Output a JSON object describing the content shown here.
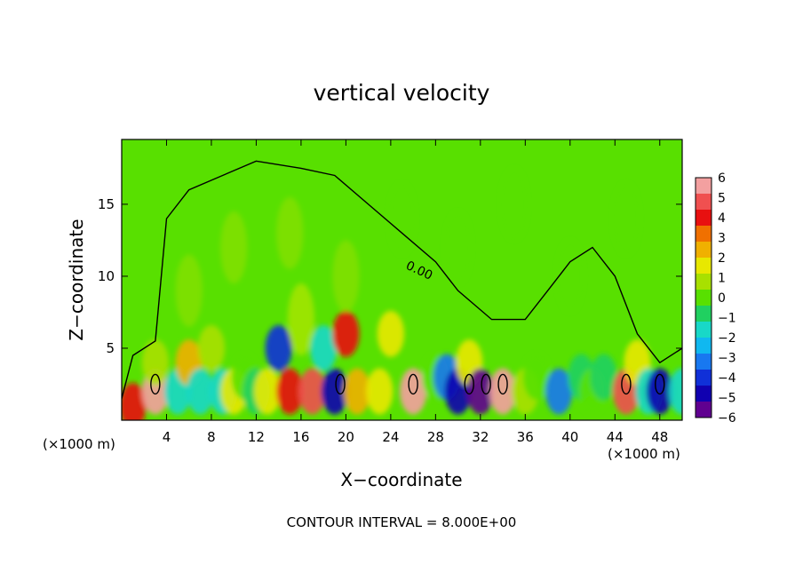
{
  "chart_data": {
    "type": "heatmap",
    "title": "vertical velocity",
    "xlabel": "X−coordinate",
    "ylabel": "Z−coordinate",
    "x_unit_left": "(×1000 m)",
    "x_unit_right": "(×1000 m)",
    "xlim": [
      0,
      50
    ],
    "ylim": [
      0,
      19.5
    ],
    "x_ticks": [
      4,
      8,
      12,
      16,
      20,
      24,
      28,
      32,
      36,
      40,
      44,
      48
    ],
    "y_ticks": [
      5,
      10,
      15
    ],
    "footer": "CONTOUR INTERVAL = 8.000E+00",
    "contour_label": "0.00",
    "colorbar": {
      "min": -6,
      "max": 6,
      "labels": [
        "6",
        "5",
        "4",
        "3",
        "2",
        "1",
        "0",
        "−1",
        "−2",
        "−3",
        "−4",
        "−5",
        "−6"
      ],
      "colors": [
        "#f3a0a0",
        "#f05050",
        "#e81010",
        "#f07000",
        "#f0b000",
        "#e8e800",
        "#a8e000",
        "#58e000",
        "#20d060",
        "#18d8c8",
        "#10b8f0",
        "#1878f0",
        "#1030d8",
        "#1000b0",
        "#600090"
      ]
    },
    "cells": [
      {
        "x": 1,
        "z": 1,
        "w": 4
      },
      {
        "x": 3,
        "z": 2,
        "w": 6
      },
      {
        "x": 3,
        "z": 4,
        "w": 1
      },
      {
        "x": 5,
        "z": 2,
        "w": -2
      },
      {
        "x": 6,
        "z": 4,
        "w": 3
      },
      {
        "x": 7,
        "z": 2,
        "w": -2
      },
      {
        "x": 8,
        "z": 5,
        "w": 1
      },
      {
        "x": 9,
        "z": 2,
        "w": -2
      },
      {
        "x": 10,
        "z": 2,
        "w": 2
      },
      {
        "x": 11,
        "z": 3,
        "w": 0
      },
      {
        "x": 12,
        "z": 2,
        "w": -1
      },
      {
        "x": 13,
        "z": 2,
        "w": 2
      },
      {
        "x": 14,
        "z": 5,
        "w": -4
      },
      {
        "x": 15,
        "z": 2,
        "w": 4
      },
      {
        "x": 16,
        "z": 7,
        "w": 2
      },
      {
        "x": 17,
        "z": 2,
        "w": 5
      },
      {
        "x": 18,
        "z": 5,
        "w": -2
      },
      {
        "x": 19,
        "z": 2,
        "w": -5
      },
      {
        "x": 20,
        "z": 6,
        "w": 4
      },
      {
        "x": 21,
        "z": 2,
        "w": 3
      },
      {
        "x": 23,
        "z": 2,
        "w": 2
      },
      {
        "x": 24,
        "z": 6,
        "w": 2
      },
      {
        "x": 26,
        "z": 2,
        "w": 6
      },
      {
        "x": 28,
        "z": 3,
        "w": 0
      },
      {
        "x": 29,
        "z": 3,
        "w": -3
      },
      {
        "x": 30,
        "z": 2,
        "w": -5
      },
      {
        "x": 31,
        "z": 4,
        "w": 2
      },
      {
        "x": 32,
        "z": 2,
        "w": -6
      },
      {
        "x": 34,
        "z": 2,
        "w": 6
      },
      {
        "x": 36,
        "z": 2,
        "w": 1
      },
      {
        "x": 37,
        "z": 3,
        "w": 0
      },
      {
        "x": 39,
        "z": 2,
        "w": -3
      },
      {
        "x": 41,
        "z": 3,
        "w": -1
      },
      {
        "x": 42,
        "z": 2,
        "w": 0
      },
      {
        "x": 43,
        "z": 3,
        "w": -1
      },
      {
        "x": 45,
        "z": 2,
        "w": 5
      },
      {
        "x": 46,
        "z": 4,
        "w": 2
      },
      {
        "x": 47,
        "z": 2,
        "w": -2
      },
      {
        "x": 48,
        "z": 2,
        "w": -5
      },
      {
        "x": 50,
        "z": 2,
        "w": -2
      },
      {
        "x": 6,
        "z": 9,
        "w": 1
      },
      {
        "x": 10,
        "z": 12,
        "w": 1
      },
      {
        "x": 15,
        "z": 13,
        "w": 1
      },
      {
        "x": 20,
        "z": 10,
        "w": 1
      },
      {
        "x": 25,
        "z": 14,
        "w": 0
      },
      {
        "x": 30,
        "z": 12,
        "w": 0
      },
      {
        "x": 35,
        "z": 15,
        "w": 0
      },
      {
        "x": 40,
        "z": 10,
        "w": 0
      },
      {
        "x": 45,
        "z": 14,
        "w": 0
      }
    ]
  }
}
